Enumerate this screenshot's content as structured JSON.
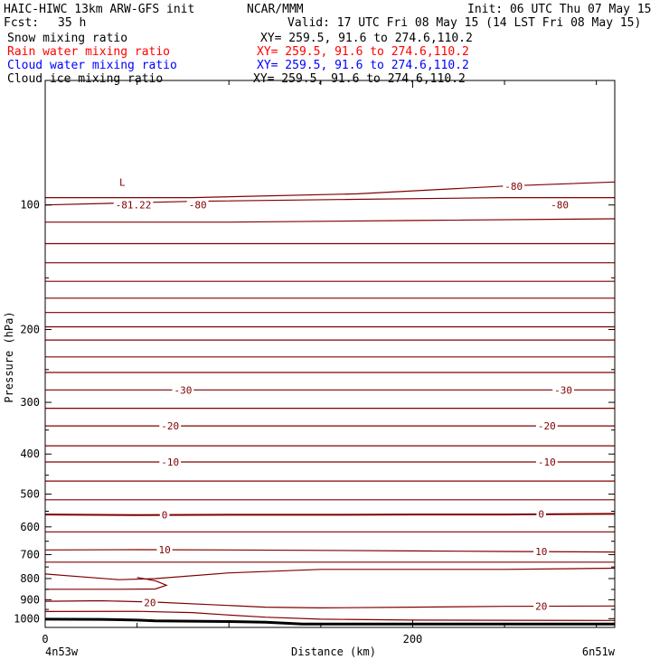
{
  "header": {
    "model": "HAIC-HIWC 13km ARW-GFS init",
    "org": "NCAR/MMM",
    "init": "Init: 06 UTC Thu 07 May 15",
    "fcst_label": "Fcst:",
    "fcst_value": "35 h",
    "valid": "Valid: 17 UTC Fri 08 May 15 (14 LST Fri 08 May 15)"
  },
  "fields": [
    {
      "name": "Snow mixing ratio",
      "xy": "XY= 259.5, 91.6 to 274.6,110.2",
      "color": "#000000"
    },
    {
      "name": "Rain water mixing ratio",
      "xy": "XY= 259.5, 91.6 to 274.6,110.2",
      "color": "#ff0000"
    },
    {
      "name": "Cloud water mixing ratio",
      "xy": "XY= 259.5, 91.6 to 274.6,110.2",
      "color": "#0000ff"
    },
    {
      "name": "Cloud ice mixing ratio",
      "xy": "XY= 259.5, 91.6 to 274.6,110.2",
      "color": "#000000"
    }
  ],
  "chart_data": {
    "type": "line",
    "title": "HAIC-HIWC 13km ARW-GFS init",
    "xlabel": "Distance (km)",
    "ylabel": "Pressure (hPa)",
    "xlim": [
      0,
      310
    ],
    "ylim": [
      1050,
      50
    ],
    "y_scale": "log",
    "x_ticks": [
      0,
      200
    ],
    "x_end_labels": [
      "4n53w",
      "6n51w"
    ],
    "y_ticks": [
      100,
      200,
      300,
      400,
      500,
      600,
      700,
      800,
      900,
      1000
    ],
    "contour_color": "#800000",
    "ground_color": "#000000",
    "low_marker": {
      "text": "L",
      "x": 42,
      "p": 88
    },
    "series": [
      {
        "level": -80,
        "x": [
          0,
          80,
          170,
          250,
          310
        ],
        "p": [
          96,
          96,
          94,
          90,
          88
        ]
      },
      {
        "level": -81,
        "x": [
          0,
          40,
          80,
          160,
          250,
          310
        ],
        "p": [
          100,
          99,
          98,
          97,
          96,
          96
        ]
      },
      {
        "level": -80,
        "x": [
          0,
          100,
          200,
          310
        ],
        "p": [
          110,
          110,
          109,
          108
        ]
      },
      {
        "level": null,
        "x": [
          0,
          310
        ],
        "p": [
          124,
          124
        ]
      },
      {
        "level": null,
        "x": [
          0,
          310
        ],
        "p": [
          138,
          138
        ]
      },
      {
        "level": null,
        "x": [
          0,
          310
        ],
        "p": [
          153,
          153
        ]
      },
      {
        "level": null,
        "x": [
          0,
          310
        ],
        "p": [
          168,
          168
        ]
      },
      {
        "level": null,
        "x": [
          0,
          310
        ],
        "p": [
          182,
          182
        ]
      },
      {
        "level": null,
        "x": [
          0,
          310
        ],
        "p": [
          197,
          197
        ]
      },
      {
        "level": null,
        "x": [
          0,
          310
        ],
        "p": [
          212,
          212
        ]
      },
      {
        "level": null,
        "x": [
          0,
          310
        ],
        "p": [
          233,
          233
        ]
      },
      {
        "level": null,
        "x": [
          0,
          310
        ],
        "p": [
          254,
          254
        ]
      },
      {
        "level": -30,
        "x": [
          0,
          310
        ],
        "p": [
          280,
          280
        ]
      },
      {
        "level": null,
        "x": [
          0,
          310
        ],
        "p": [
          310,
          310
        ]
      },
      {
        "level": -20,
        "x": [
          0,
          310
        ],
        "p": [
          342,
          342
        ]
      },
      {
        "level": null,
        "x": [
          0,
          310
        ],
        "p": [
          382,
          382
        ]
      },
      {
        "level": -10,
        "x": [
          0,
          310
        ],
        "p": [
          418,
          418
        ]
      },
      {
        "level": null,
        "x": [
          0,
          310
        ],
        "p": [
          465,
          465
        ]
      },
      {
        "level": null,
        "x": [
          0,
          310
        ],
        "p": [
          516,
          516
        ]
      },
      {
        "level": 0,
        "x": [
          0,
          50,
          100,
          150,
          200,
          250,
          310
        ],
        "p": [
          560,
          562,
          561,
          561,
          560,
          560,
          558
        ]
      },
      {
        "level": null,
        "x": [
          0,
          310
        ],
        "p": [
          617,
          617
        ]
      },
      {
        "level": 10,
        "x": [
          0,
          50,
          100,
          150,
          200,
          250,
          310
        ],
        "p": [
          682,
          681,
          682,
          684,
          686,
          688,
          690
        ]
      },
      {
        "level": null,
        "x": [
          0,
          310
        ],
        "p": [
          730,
          730
        ]
      },
      {
        "level": null,
        "x": [
          0,
          40,
          60,
          100,
          150,
          200,
          250,
          310
        ],
        "p": [
          780,
          805,
          800,
          775,
          760,
          760,
          760,
          755
        ]
      },
      {
        "level": null,
        "x": [
          0,
          40,
          60,
          66,
          60,
          50
        ],
        "p": [
          849,
          849,
          848,
          830,
          810,
          795
        ]
      },
      {
        "level": 20,
        "x": [
          0,
          30,
          60,
          90,
          120,
          150,
          200,
          250,
          310
        ],
        "p": [
          908,
          905,
          912,
          925,
          938,
          942,
          938,
          934,
          932
        ]
      },
      {
        "level": null,
        "x": [
          0,
          50,
          80,
          100,
          120,
          150,
          200,
          250,
          310
        ],
        "p": [
          961,
          960,
          967,
          980,
          992,
          1003,
          1008,
          1009,
          1010
        ]
      },
      {
        "level": "ground",
        "x": [
          0,
          30,
          50,
          60,
          100,
          120,
          140,
          200,
          250,
          310
        ],
        "p": [
          1003,
          1004,
          1008,
          1012,
          1016,
          1020,
          1030,
          1030,
          1030,
          1030
        ]
      }
    ],
    "labels": [
      {
        "text": "-81.22",
        "x": 48,
        "p": 100
      },
      {
        "text": "-80",
        "x": 83,
        "p": 100
      },
      {
        "text": "-80",
        "x": 255,
        "p": 90
      },
      {
        "text": "-80",
        "x": 280,
        "p": 100
      },
      {
        "text": "-30",
        "x": 75,
        "p": 280
      },
      {
        "text": "-30",
        "x": 282,
        "p": 280
      },
      {
        "text": "-20",
        "x": 68,
        "p": 342
      },
      {
        "text": "-20",
        "x": 273,
        "p": 342
      },
      {
        "text": "-10",
        "x": 68,
        "p": 418
      },
      {
        "text": "-10",
        "x": 273,
        "p": 418
      },
      {
        "text": "0",
        "x": 65,
        "p": 561
      },
      {
        "text": "0",
        "x": 270,
        "p": 558
      },
      {
        "text": "10",
        "x": 65,
        "p": 681
      },
      {
        "text": "10",
        "x": 270,
        "p": 688
      },
      {
        "text": "20",
        "x": 57,
        "p": 915
      },
      {
        "text": "20",
        "x": 270,
        "p": 933
      }
    ]
  }
}
